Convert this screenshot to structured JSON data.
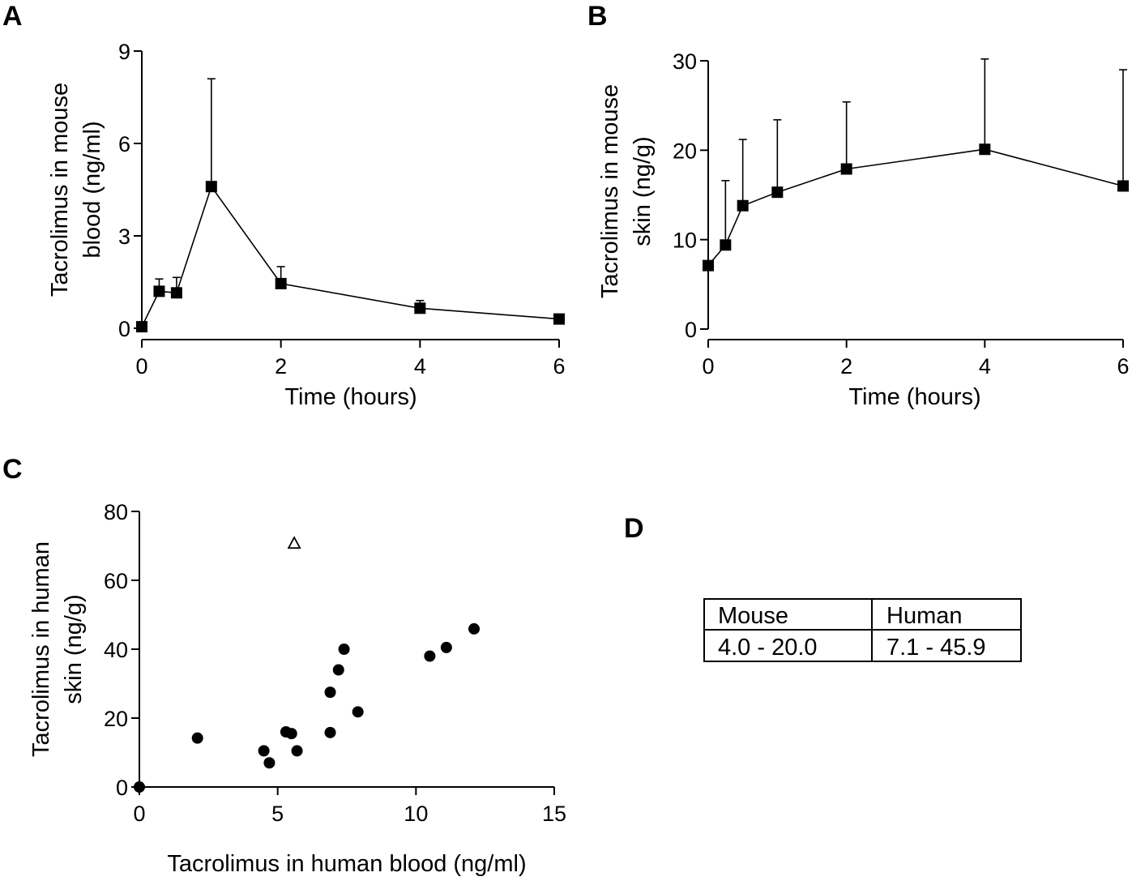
{
  "panels": {
    "a": {
      "letter": "A"
    },
    "b": {
      "letter": "B"
    },
    "c": {
      "letter": "C"
    },
    "d": {
      "letter": "D"
    }
  },
  "chart_data": [
    {
      "id": "A",
      "type": "line",
      "title": "",
      "xlabel": "Time (hours)",
      "ylabel_lines": [
        "Tacrolimus in mouse",
        "blood (ng/ml)"
      ],
      "xlim": [
        0,
        6
      ],
      "ylim": [
        0,
        9
      ],
      "xticks": [
        0,
        2,
        4,
        6
      ],
      "yticks": [
        0,
        3,
        6,
        9
      ],
      "grid": false,
      "marker": "square",
      "x": [
        0,
        0.25,
        0.5,
        1,
        2,
        4,
        6
      ],
      "y": [
        0.05,
        1.2,
        1.15,
        4.6,
        1.45,
        0.65,
        0.3
      ],
      "error_upper": [
        null,
        1.6,
        1.65,
        8.1,
        2.0,
        0.9,
        null
      ]
    },
    {
      "id": "B",
      "type": "line",
      "title": "",
      "xlabel": "Time (hours)",
      "ylabel_lines": [
        "Tacrolimus in mouse",
        "skin (ng/g)"
      ],
      "xlim": [
        0,
        6
      ],
      "ylim": [
        0,
        30
      ],
      "xticks": [
        0,
        2,
        4,
        6
      ],
      "yticks": [
        0,
        10,
        20,
        30
      ],
      "grid": false,
      "marker": "square",
      "x": [
        0,
        0.25,
        0.5,
        1,
        2,
        4,
        6
      ],
      "y": [
        7.1,
        9.4,
        13.8,
        15.3,
        17.9,
        20.1,
        16.0
      ],
      "error_upper": [
        null,
        16.6,
        21.2,
        23.4,
        25.4,
        30.2,
        29.0
      ]
    },
    {
      "id": "C",
      "type": "scatter",
      "title": "",
      "xlabel": "Tacrolimus in human blood (ng/ml)",
      "ylabel_lines": [
        "Tacrolimus in human",
        "skin (ng/g)"
      ],
      "xlim": [
        0,
        15
      ],
      "ylim": [
        0,
        80
      ],
      "xticks": [
        0,
        5,
        10,
        15
      ],
      "yticks": [
        0,
        20,
        40,
        60,
        80
      ],
      "grid": false,
      "series": [
        {
          "marker": "filled-circle",
          "points": [
            [
              0,
              0
            ],
            [
              2.1,
              14.2
            ],
            [
              4.5,
              10.5
            ],
            [
              4.7,
              7.0
            ],
            [
              5.3,
              16.0
            ],
            [
              5.5,
              15.5
            ],
            [
              5.7,
              10.5
            ],
            [
              6.9,
              27.5
            ],
            [
              6.9,
              15.8
            ],
            [
              7.2,
              34.0
            ],
            [
              7.4,
              40.0
            ],
            [
              7.9,
              21.8
            ],
            [
              10.5,
              38.0
            ],
            [
              11.1,
              40.5
            ],
            [
              12.1,
              45.9
            ]
          ]
        },
        {
          "marker": "open-triangle",
          "points": [
            [
              5.6,
              70.8
            ]
          ]
        }
      ]
    },
    {
      "id": "D",
      "type": "table",
      "headers": [
        "Mouse",
        "Human"
      ],
      "rows": [
        [
          "4.0 - 20.0",
          "7.1 - 45.9"
        ]
      ]
    }
  ]
}
